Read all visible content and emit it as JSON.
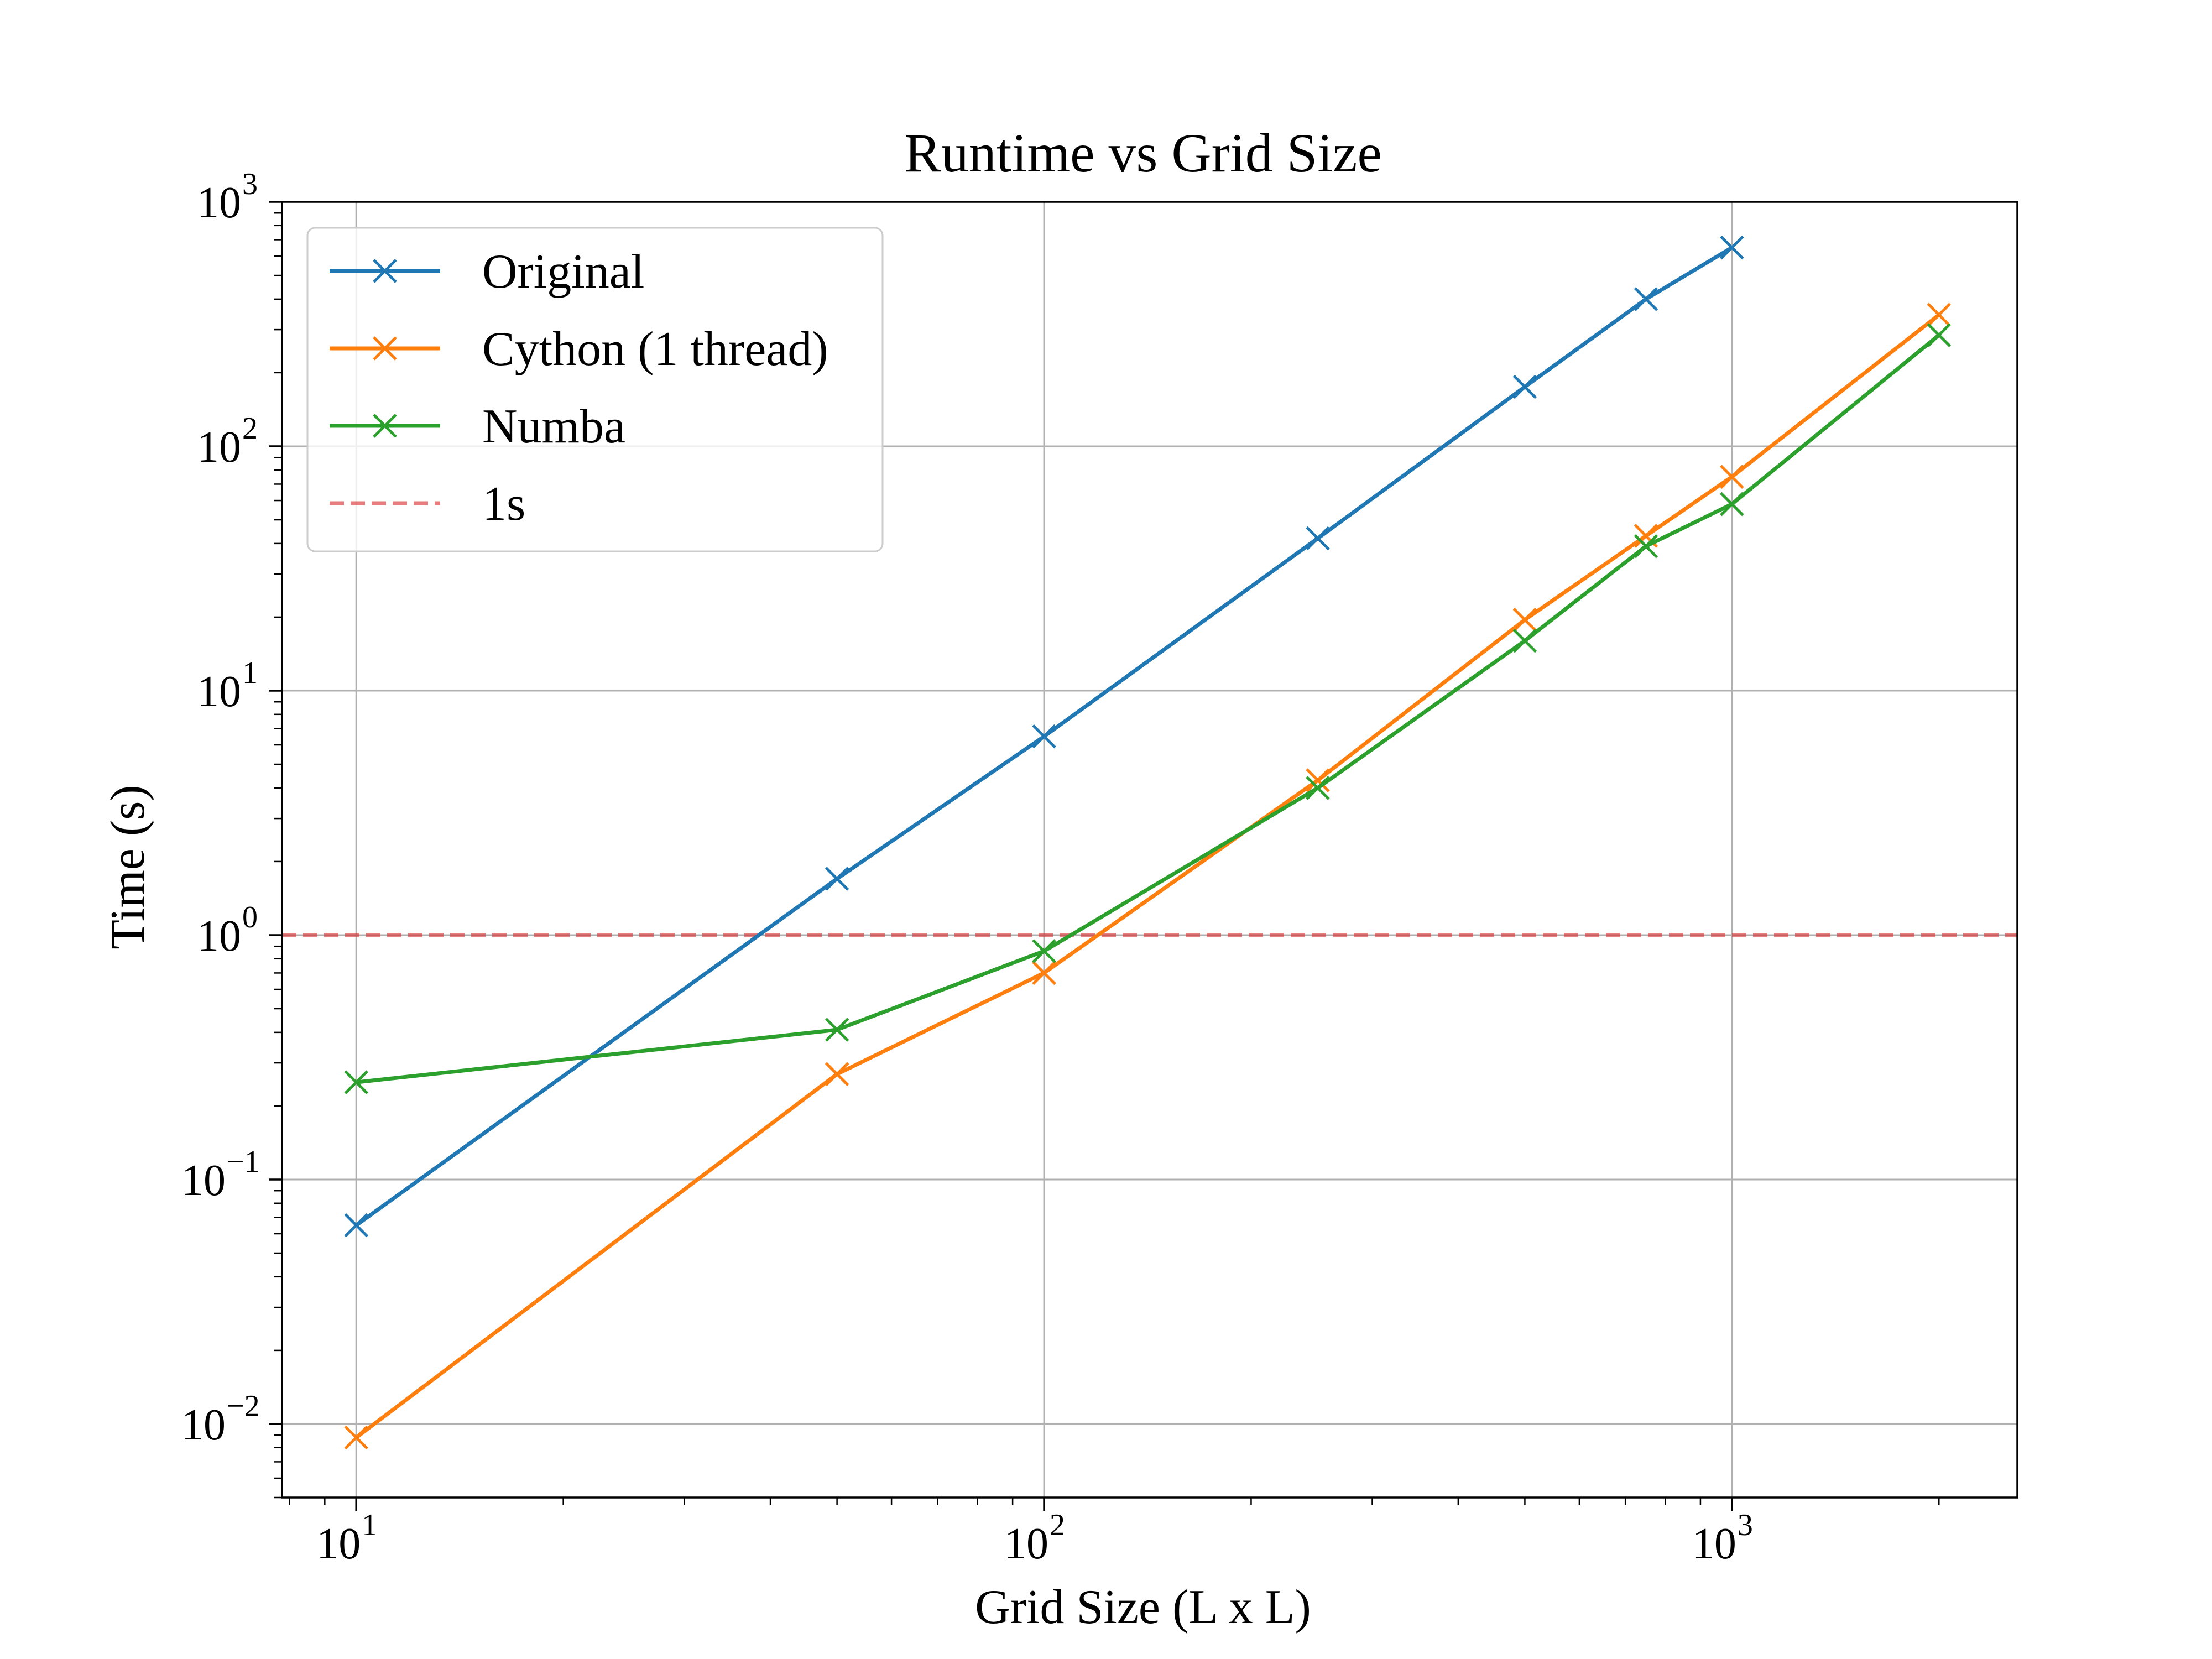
{
  "chart_data": {
    "type": "line",
    "title": "Runtime vs Grid Size",
    "xlabel": "Grid Size (L x L)",
    "ylabel": "Time (s)",
    "xscale": "log",
    "yscale": "log",
    "xlim": [
      7.8,
      2600
    ],
    "ylim": [
      0.005,
      1000
    ],
    "grid": true,
    "legend_position": "upper-left",
    "x_tick_labels": [
      {
        "value": 10,
        "base": "10",
        "exp": "1"
      },
      {
        "value": 100,
        "base": "10",
        "exp": "2"
      },
      {
        "value": 1000,
        "base": "10",
        "exp": "3"
      }
    ],
    "y_tick_labels": [
      {
        "value": 0.01,
        "base": "10",
        "exp": "−2"
      },
      {
        "value": 0.1,
        "base": "10",
        "exp": "−1"
      },
      {
        "value": 1,
        "base": "10",
        "exp": "0"
      },
      {
        "value": 10,
        "base": "10",
        "exp": "1"
      },
      {
        "value": 100,
        "base": "10",
        "exp": "2"
      },
      {
        "value": 1000,
        "base": "10",
        "exp": "3"
      }
    ],
    "series": [
      {
        "name": "Original",
        "color": "#1f77b4",
        "marker": "x",
        "x": [
          10,
          50,
          100,
          250,
          500,
          750,
          1000
        ],
        "y": [
          0.065,
          1.7,
          6.5,
          42,
          175,
          400,
          650
        ]
      },
      {
        "name": "Cython (1 thread)",
        "color": "#ff7f0e",
        "marker": "x",
        "x": [
          10,
          50,
          100,
          250,
          500,
          750,
          1000,
          2000
        ],
        "y": [
          0.0088,
          0.27,
          0.7,
          4.3,
          19.5,
          43,
          75,
          345
        ]
      },
      {
        "name": "Numba",
        "color": "#2ca02c",
        "marker": "x",
        "x": [
          10,
          50,
          100,
          250,
          500,
          750,
          1000,
          2000
        ],
        "y": [
          0.25,
          0.41,
          0.86,
          4.0,
          16,
          39,
          58,
          285
        ]
      }
    ],
    "reference_lines": [
      {
        "name": "1s",
        "y": 1,
        "color": "#d62728",
        "style": "dashed"
      }
    ]
  }
}
